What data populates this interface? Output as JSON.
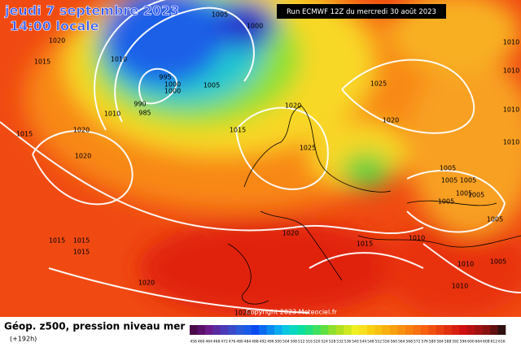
{
  "title": "jeudi 7 septembre 2023",
  "subtitle": "14:00 locale",
  "run": "Run ECMWF 12Z du mercredi 30 août 2023",
  "copyright": "Copyright 2023 Meteociel.fr",
  "field": "Géop. z500, pression niveau mer",
  "lead": "(+192h)",
  "isobar_labels": [
    1005,
    1000,
    1020,
    1015,
    1010,
    995,
    1000,
    1000,
    1005,
    990,
    985,
    1010,
    1025,
    1020,
    1020,
    1015,
    1015,
    1020,
    1020,
    1025,
    1010,
    1010,
    1010,
    1010,
    1005,
    1005,
    1005,
    1005,
    1005,
    1005,
    1005,
    1010,
    1010,
    1010,
    1005,
    1015,
    1020,
    1015,
    1015,
    1015,
    1020,
    1020
  ],
  "colorbar": {
    "ticks": [
      456,
      460,
      464,
      468,
      472,
      476,
      480,
      484,
      488,
      492,
      496,
      500,
      504,
      508,
      512,
      516,
      520,
      524,
      528,
      532,
      536,
      540,
      544,
      548,
      552,
      556,
      560,
      564,
      568,
      572,
      576,
      580,
      584,
      588,
      592,
      596,
      600,
      604,
      608,
      612,
      616
    ],
    "colors": [
      "#4a0a4a",
      "#5a0f6a",
      "#6a1a8a",
      "#5a2aa0",
      "#4a3ab8",
      "#3a4ac8",
      "#2a5ad8",
      "#1a5ae8",
      "#0a4af0",
      "#0a6af0",
      "#0a8af0",
      "#0aaaf0",
      "#0ac8e0",
      "#0ad8c0",
      "#0ae0a0",
      "#20e080",
      "#40e060",
      "#60e040",
      "#90e030",
      "#b0e020",
      "#d0e820",
      "#f0f020",
      "#f8e020",
      "#f8d010",
      "#f8c010",
      "#f8b010",
      "#f8a010",
      "#f89010",
      "#f88010",
      "#f87010",
      "#f86010",
      "#f05010",
      "#e84010",
      "#e03010",
      "#d82010",
      "#d01010",
      "#b81010",
      "#a01010",
      "#881010",
      "#601010",
      "#301010"
    ]
  }
}
